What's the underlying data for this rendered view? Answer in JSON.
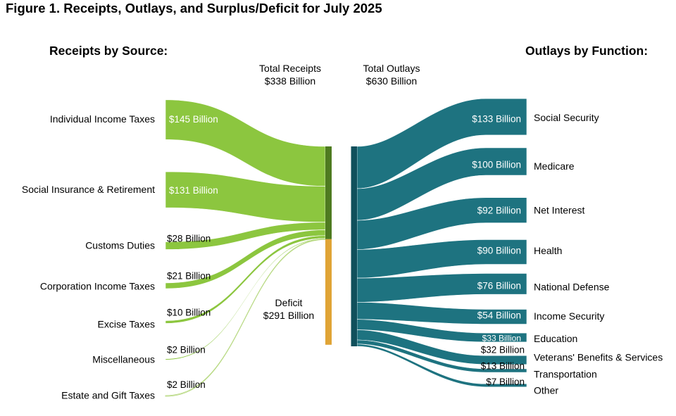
{
  "title": "Figure 1. Receipts, Outlays, and Surplus/Deficit for July 2025",
  "left_heading": "Receipts by Source:",
  "right_heading": "Outlays by Function:",
  "totals": {
    "receipts": {
      "label": "Total Receipts",
      "value_label": "$338 Billion",
      "value": 338
    },
    "outlays": {
      "label": "Total Outlays",
      "value_label": "$630 Billion",
      "value": 630
    },
    "deficit": {
      "label": "Deficit",
      "value_label": "$291 Billion",
      "value": 291
    }
  },
  "chart_data": {
    "type": "sankey",
    "unit": "billions of USD",
    "receipts": [
      {
        "name": "Individual Income Taxes",
        "value": 145,
        "value_label": "$145 Billion",
        "label_style": "inside-white"
      },
      {
        "name": "Social Insurance & Retirement",
        "value": 131,
        "value_label": "$131 Billion",
        "label_style": "inside-white"
      },
      {
        "name": "Customs Duties",
        "value": 28,
        "value_label": "$28 Billion",
        "label_style": "above-black"
      },
      {
        "name": "Corporation Income Taxes",
        "value": 21,
        "value_label": "$21 Billion",
        "label_style": "above-black"
      },
      {
        "name": "Excise Taxes",
        "value": 10,
        "value_label": "$10 Billion",
        "label_style": "above-black"
      },
      {
        "name": "Miscellaneous",
        "value": 2,
        "value_label": "$2 Billion",
        "label_style": "above-black"
      },
      {
        "name": "Estate and Gift Taxes",
        "value": 2,
        "value_label": "$2 Billion",
        "label_style": "above-black"
      }
    ],
    "outlays": [
      {
        "name": "Social Security",
        "value": 133,
        "value_label": "$133 Billion",
        "label_style": "inside-white"
      },
      {
        "name": "Medicare",
        "value": 100,
        "value_label": "$100 Billion",
        "label_style": "inside-white"
      },
      {
        "name": "Net Interest",
        "value": 92,
        "value_label": "$92 Billion",
        "label_style": "inside-white"
      },
      {
        "name": "Health",
        "value": 90,
        "value_label": "$90 Billion",
        "label_style": "inside-white"
      },
      {
        "name": "National Defense",
        "value": 76,
        "value_label": "$76 Billion",
        "label_style": "inside-white"
      },
      {
        "name": "Income Security",
        "value": 54,
        "value_label": "$54 Billion",
        "label_style": "inside-white"
      },
      {
        "name": "Education",
        "value": 33,
        "value_label": "$33 Billion",
        "label_style": "inside-white-small"
      },
      {
        "name": "Veterans' Benefits & Services",
        "value": 32,
        "value_label": "$32 Billion",
        "label_style": "outside-black"
      },
      {
        "name": "Transportation",
        "value": 13,
        "value_label": "$13 Billion",
        "label_style": "outside-black"
      },
      {
        "name": "Other",
        "value": 7,
        "value_label": "$7 Billion",
        "label_style": "outside-black"
      }
    ],
    "colors": {
      "receipts_flow": "#8CC63F",
      "receipts_bar": "#4E7B20",
      "deficit_bar": "#E0A436",
      "outlays_flow": "#1E7380",
      "outlays_bar": "#10505C",
      "estate_flow_fill": "#f4f9ea",
      "estate_flow_edge": "#b9da85"
    }
  }
}
